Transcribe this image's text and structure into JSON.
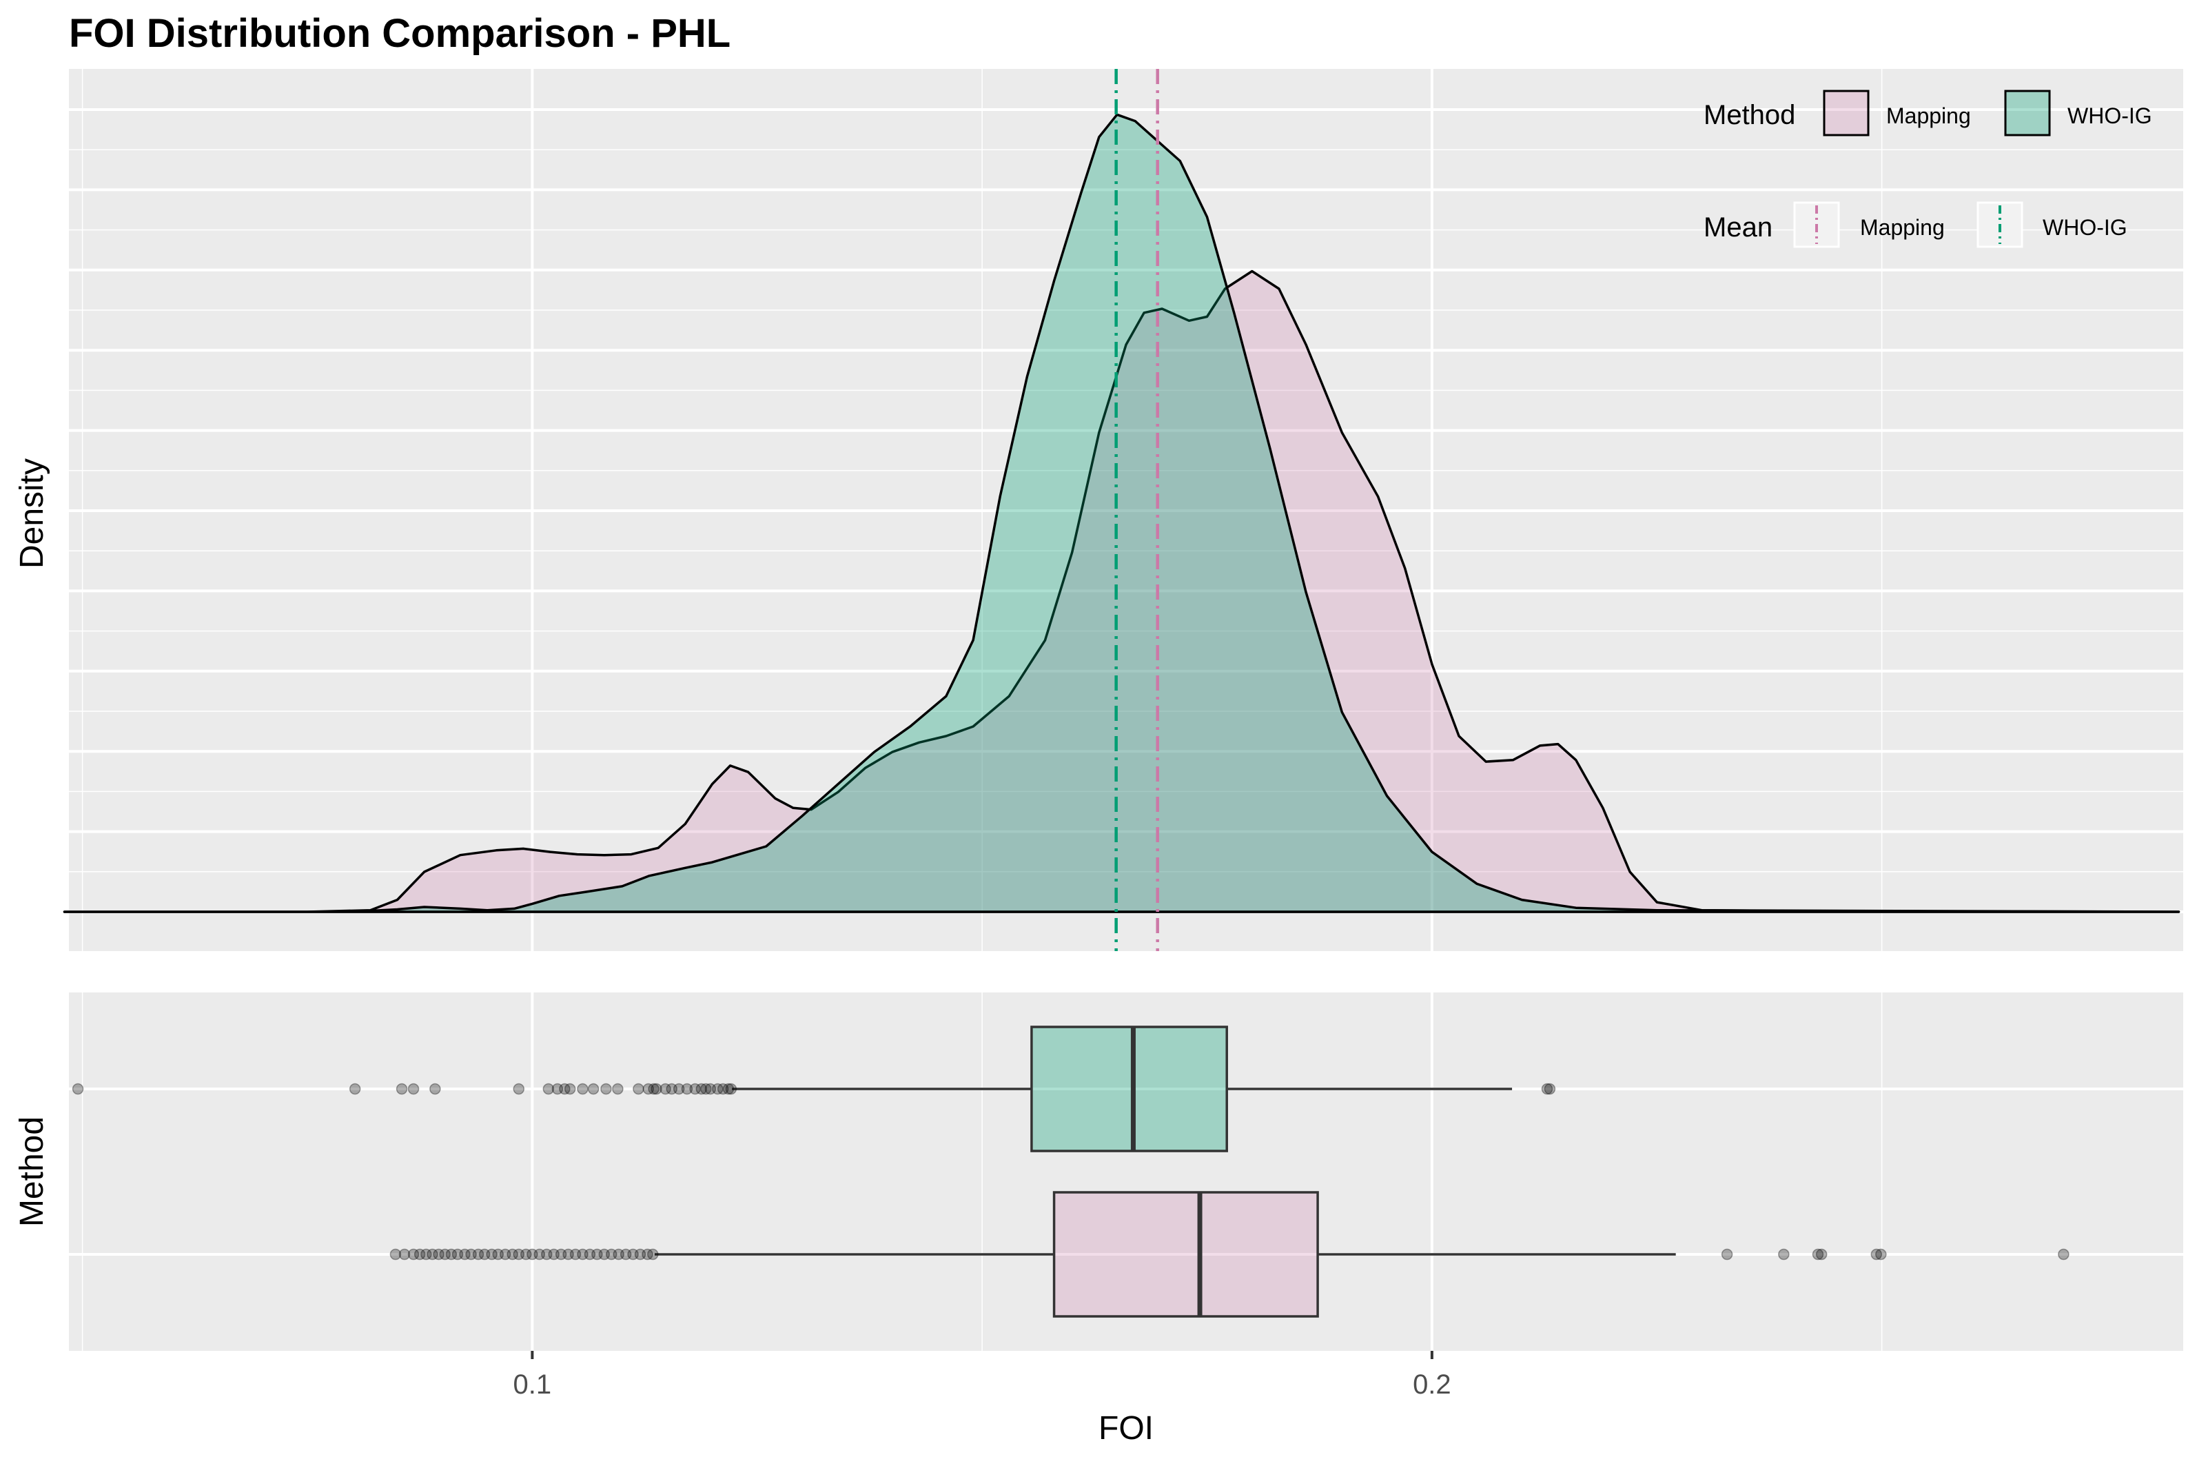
{
  "title": "FOI Distribution Comparison - PHL",
  "colors": {
    "mapping": "#CC79A7",
    "who_ig": "#009E73",
    "panel_bg": "#EBEBEB",
    "grid": "#FFFFFF",
    "outline": "#000000"
  },
  "chart_data": [
    {
      "type": "area",
      "subtype": "density",
      "title": "FOI Distribution Comparison - PHL",
      "ylabel": "Density",
      "xlim": [
        0.0485,
        0.2835
      ],
      "grid": true,
      "legend_position": "top-right",
      "legend": {
        "method_title": "Method",
        "mean_title": "Mean",
        "entries": [
          "Mapping",
          "WHO-IG"
        ]
      },
      "series": [
        {
          "name": "Mapping",
          "color": "#CC79A7",
          "mean": 0.1695,
          "points": [
            [
              0.048,
              0
            ],
            [
              0.075,
              0
            ],
            [
              0.082,
              0.002
            ],
            [
              0.085,
              0.015
            ],
            [
              0.088,
              0.05
            ],
            [
              0.092,
              0.071
            ],
            [
              0.096,
              0.077
            ],
            [
              0.099,
              0.079
            ],
            [
              0.102,
              0.075
            ],
            [
              0.105,
              0.072
            ],
            [
              0.108,
              0.071
            ],
            [
              0.111,
              0.072
            ],
            [
              0.114,
              0.08
            ],
            [
              0.117,
              0.11
            ],
            [
              0.12,
              0.16
            ],
            [
              0.122,
              0.183
            ],
            [
              0.124,
              0.175
            ],
            [
              0.127,
              0.142
            ],
            [
              0.129,
              0.13
            ],
            [
              0.131,
              0.128
            ],
            [
              0.134,
              0.15
            ],
            [
              0.137,
              0.18
            ],
            [
              0.14,
              0.2
            ],
            [
              0.143,
              0.212
            ],
            [
              0.146,
              0.22
            ],
            [
              0.149,
              0.232
            ],
            [
              0.153,
              0.27
            ],
            [
              0.157,
              0.34
            ],
            [
              0.16,
              0.45
            ],
            [
              0.163,
              0.6
            ],
            [
              0.166,
              0.71
            ],
            [
              0.168,
              0.75
            ],
            [
              0.17,
              0.755
            ],
            [
              0.173,
              0.74
            ],
            [
              0.175,
              0.745
            ],
            [
              0.177,
              0.78
            ],
            [
              0.18,
              0.802
            ],
            [
              0.183,
              0.78
            ],
            [
              0.186,
              0.71
            ],
            [
              0.19,
              0.6
            ],
            [
              0.194,
              0.52
            ],
            [
              0.197,
              0.43
            ],
            [
              0.2,
              0.31
            ],
            [
              0.203,
              0.22
            ],
            [
              0.206,
              0.188
            ],
            [
              0.209,
              0.19
            ],
            [
              0.212,
              0.208
            ],
            [
              0.214,
              0.21
            ],
            [
              0.216,
              0.19
            ],
            [
              0.219,
              0.13
            ],
            [
              0.222,
              0.05
            ],
            [
              0.225,
              0.012
            ],
            [
              0.23,
              0.002
            ],
            [
              0.24,
              0.001
            ],
            [
              0.283,
              0
            ]
          ]
        },
        {
          "name": "WHO-IG",
          "color": "#009E73",
          "mean": 0.1649,
          "points": [
            [
              0.048,
              0
            ],
            [
              0.08,
              0
            ],
            [
              0.085,
              0.003
            ],
            [
              0.088,
              0.006
            ],
            [
              0.092,
              0.004
            ],
            [
              0.095,
              0.002
            ],
            [
              0.098,
              0.004
            ],
            [
              0.1,
              0.01
            ],
            [
              0.103,
              0.02
            ],
            [
              0.106,
              0.025
            ],
            [
              0.11,
              0.032
            ],
            [
              0.113,
              0.045
            ],
            [
              0.117,
              0.055
            ],
            [
              0.12,
              0.062
            ],
            [
              0.123,
              0.072
            ],
            [
              0.126,
              0.082
            ],
            [
              0.13,
              0.12
            ],
            [
              0.134,
              0.16
            ],
            [
              0.138,
              0.2
            ],
            [
              0.142,
              0.232
            ],
            [
              0.146,
              0.27
            ],
            [
              0.149,
              0.34
            ],
            [
              0.152,
              0.52
            ],
            [
              0.155,
              0.67
            ],
            [
              0.158,
              0.79
            ],
            [
              0.161,
              0.9
            ],
            [
              0.163,
              0.97
            ],
            [
              0.165,
              0.998
            ],
            [
              0.167,
              0.99
            ],
            [
              0.169,
              0.97
            ],
            [
              0.172,
              0.94
            ],
            [
              0.175,
              0.87
            ],
            [
              0.178,
              0.75
            ],
            [
              0.182,
              0.58
            ],
            [
              0.186,
              0.4
            ],
            [
              0.19,
              0.25
            ],
            [
              0.195,
              0.145
            ],
            [
              0.2,
              0.075
            ],
            [
              0.205,
              0.035
            ],
            [
              0.21,
              0.015
            ],
            [
              0.216,
              0.005
            ],
            [
              0.225,
              0.002
            ],
            [
              0.283,
              0
            ]
          ]
        }
      ]
    },
    {
      "type": "boxplot",
      "xlabel": "FOI",
      "ylabel": "Method",
      "xlim": [
        0.0485,
        0.2835
      ],
      "xticks": [
        0.1,
        0.2
      ],
      "xtick_labels": [
        "0.1",
        "0.2"
      ],
      "grid": true,
      "series": [
        {
          "name": "WHO-IG",
          "color": "#009E73",
          "q1": 0.1555,
          "median": 0.1668,
          "q3": 0.1772,
          "whisker_low": 0.1222,
          "whisker_high": 0.2089,
          "outliers": [
            0.0495,
            0.0803,
            0.0855,
            0.0868,
            0.0892,
            0.0985,
            0.1018,
            0.1028,
            0.1036,
            0.1042,
            0.1056,
            0.1068,
            0.1082,
            0.1095,
            0.1118,
            0.1129,
            0.1135,
            0.1138,
            0.1148,
            0.1155,
            0.1163,
            0.1172,
            0.1181,
            0.1188,
            0.1193,
            0.1198,
            0.1206,
            0.1212,
            0.1218,
            0.1221,
            0.2128,
            0.2131
          ]
        },
        {
          "name": "Mapping",
          "color": "#CC79A7",
          "q1": 0.158,
          "median": 0.1742,
          "q3": 0.1873,
          "whisker_low": 0.1136,
          "whisker_high": 0.2271,
          "outliers": [
            0.0848,
            0.0858,
            0.0868,
            0.0875,
            0.0882,
            0.0889,
            0.0896,
            0.0903,
            0.091,
            0.0917,
            0.0925,
            0.0932,
            0.094,
            0.0947,
            0.0955,
            0.0962,
            0.097,
            0.0978,
            0.0985,
            0.0993,
            0.1,
            0.1008,
            0.1016,
            0.1024,
            0.1032,
            0.104,
            0.1048,
            0.1056,
            0.1064,
            0.1072,
            0.108,
            0.1088,
            0.1096,
            0.1104,
            0.1112,
            0.112,
            0.1128,
            0.1134,
            0.2328,
            0.2391,
            0.2429,
            0.2433,
            0.2494,
            0.2499,
            0.2702
          ]
        }
      ]
    }
  ]
}
